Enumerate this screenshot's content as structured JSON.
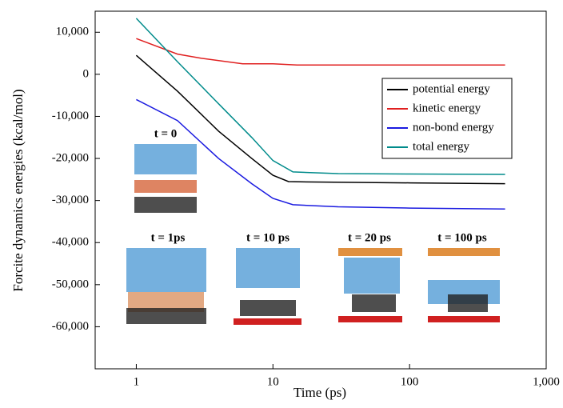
{
  "chart_data": {
    "type": "line",
    "xlabel": "Time (ps)",
    "ylabel": "Forcite dynamics energies (kcal/mol)",
    "log_x": true,
    "xlim": [
      0.5,
      1000
    ],
    "xticks": [
      1,
      10,
      100,
      {
        "value": 1000,
        "label": "1,000"
      }
    ],
    "ylim": [
      -70000,
      15000
    ],
    "yticks": [
      {
        "value": 10000,
        "label": "10,000"
      },
      0,
      {
        "value": -10000,
        "label": "-10,000"
      },
      {
        "value": -20000,
        "label": "-20,000"
      },
      {
        "value": -30000,
        "label": "-30,000"
      },
      {
        "value": -40000,
        "label": "-40,000"
      },
      {
        "value": -50000,
        "label": "-50,000"
      },
      {
        "value": -60000,
        "label": "-60,000"
      }
    ],
    "legend": "upper right",
    "series": [
      {
        "name": "potential energy",
        "color": "#000000",
        "x": [
          1,
          2,
          4,
          7,
          10,
          13,
          20,
          100,
          500
        ],
        "values": [
          4500,
          -4000,
          -13500,
          -20000,
          -24000,
          -25500,
          -25600,
          -25800,
          -26000
        ]
      },
      {
        "name": "kinetic energy",
        "color": "#e02020",
        "x": [
          1,
          2,
          3,
          6,
          10,
          15,
          100,
          500
        ],
        "values": [
          8500,
          4800,
          3800,
          2500,
          2500,
          2200,
          2200,
          2200
        ]
      },
      {
        "name": "non-bond energy",
        "color": "#1a1ae0",
        "x": [
          1,
          2,
          4,
          7,
          10,
          14,
          30,
          100,
          500
        ],
        "values": [
          -6000,
          -11000,
          -20000,
          -26000,
          -29500,
          -31000,
          -31500,
          -31800,
          -32000
        ]
      },
      {
        "name": "total energy",
        "color": "#008b8b",
        "x": [
          1,
          2,
          4,
          7,
          10,
          14,
          30,
          100,
          500
        ],
        "values": [
          13300,
          3000,
          -7000,
          -15000,
          -20500,
          -23200,
          -23600,
          -23700,
          -23800
        ]
      }
    ],
    "annotations": [
      "t = 0",
      "t = 1ps",
      "t = 10 ps",
      "t = 20 ps",
      "t = 100 ps"
    ]
  }
}
